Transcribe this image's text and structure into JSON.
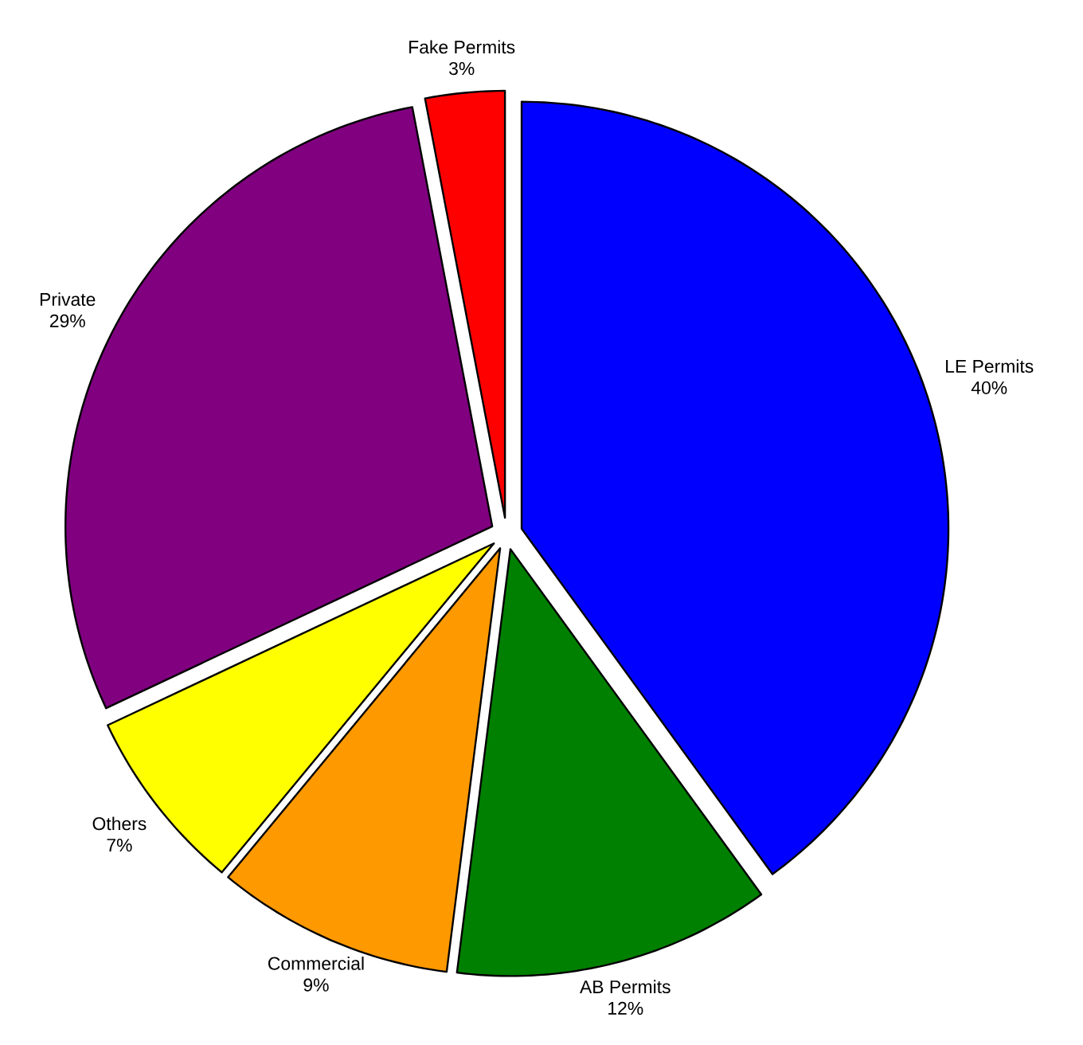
{
  "chart_data": {
    "type": "pie",
    "categories": [
      "LE Permits",
      "AB Permits",
      "Commercial",
      "Others",
      "Private",
      "Fake Permits"
    ],
    "values": [
      40,
      12,
      9,
      7,
      29,
      3
    ],
    "value_labels": [
      "40%",
      "12%",
      "9%",
      "7%",
      "29%",
      "3%"
    ],
    "colors": [
      "#0000ff",
      "#008000",
      "#ff9900",
      "#ffff00",
      "#800080",
      "#ff0000"
    ]
  }
}
